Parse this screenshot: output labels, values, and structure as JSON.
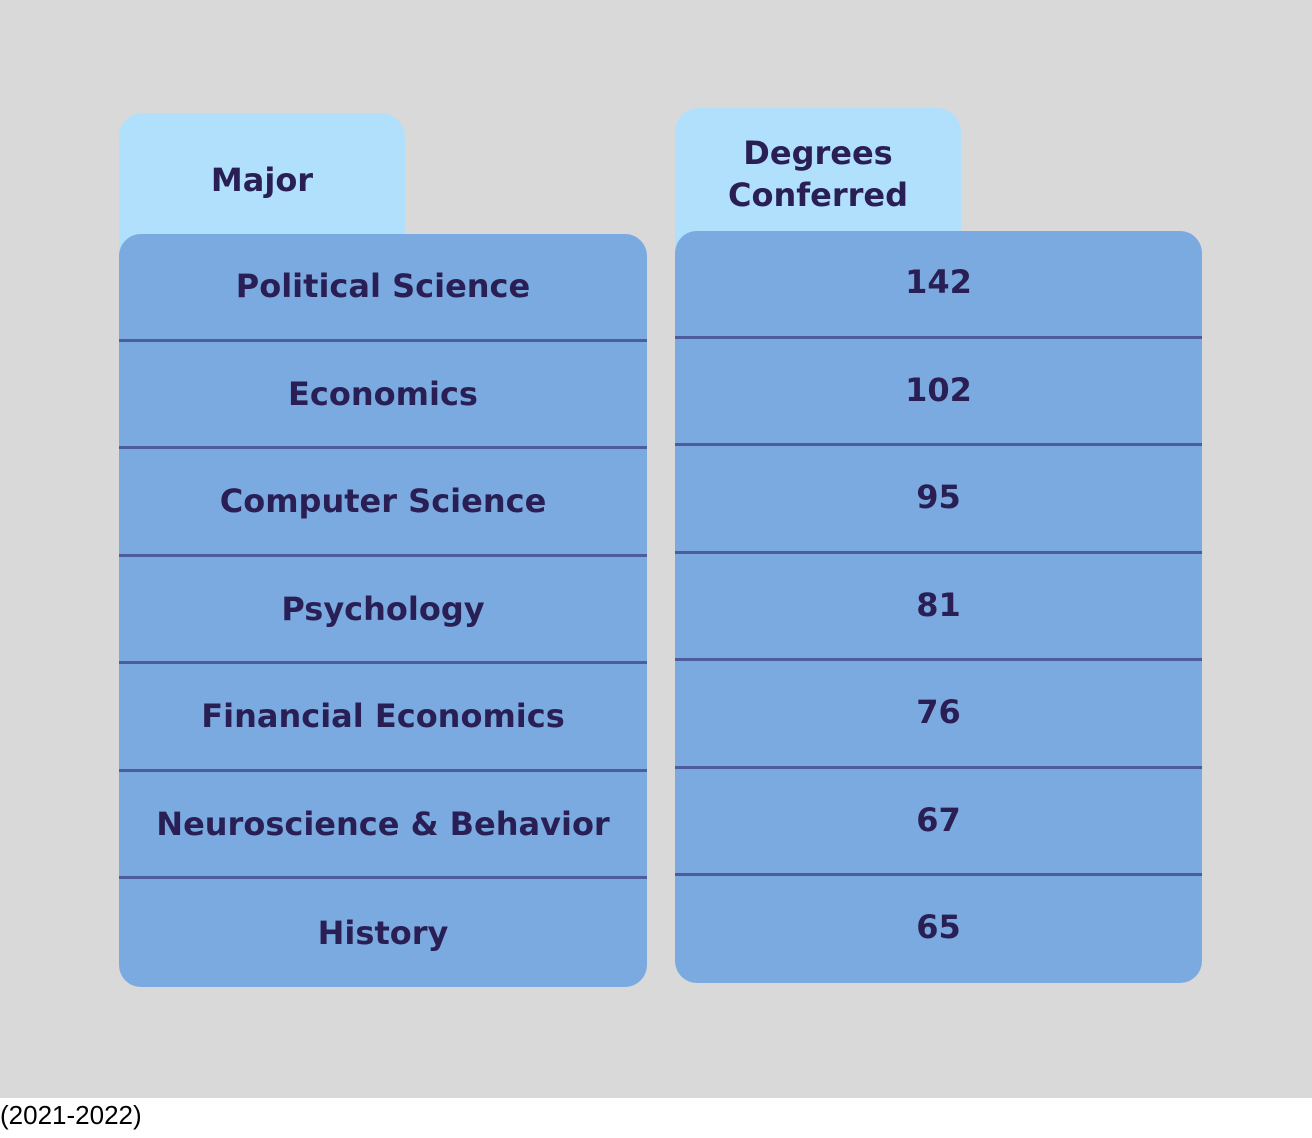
{
  "chart_data": {
    "type": "table",
    "columns": [
      "Major",
      "Degrees Conferred"
    ],
    "rows": [
      {
        "major": "Political Science",
        "degrees": "142"
      },
      {
        "major": "Economics",
        "degrees": "102"
      },
      {
        "major": "Computer Science",
        "degrees": "95"
      },
      {
        "major": "Psychology",
        "degrees": "81"
      },
      {
        "major": "Financial Economics",
        "degrees": "76"
      },
      {
        "major": "Neuroscience & Behavior",
        "degrees": "67"
      },
      {
        "major": "History",
        "degrees": "65"
      }
    ],
    "caption": "(2021-2022)",
    "colors": {
      "background": "#d9d9d9",
      "header": "#b0e0fb",
      "body": "#7aaae0",
      "text": "#2a1f55",
      "divider": "#4d5d9c"
    }
  }
}
